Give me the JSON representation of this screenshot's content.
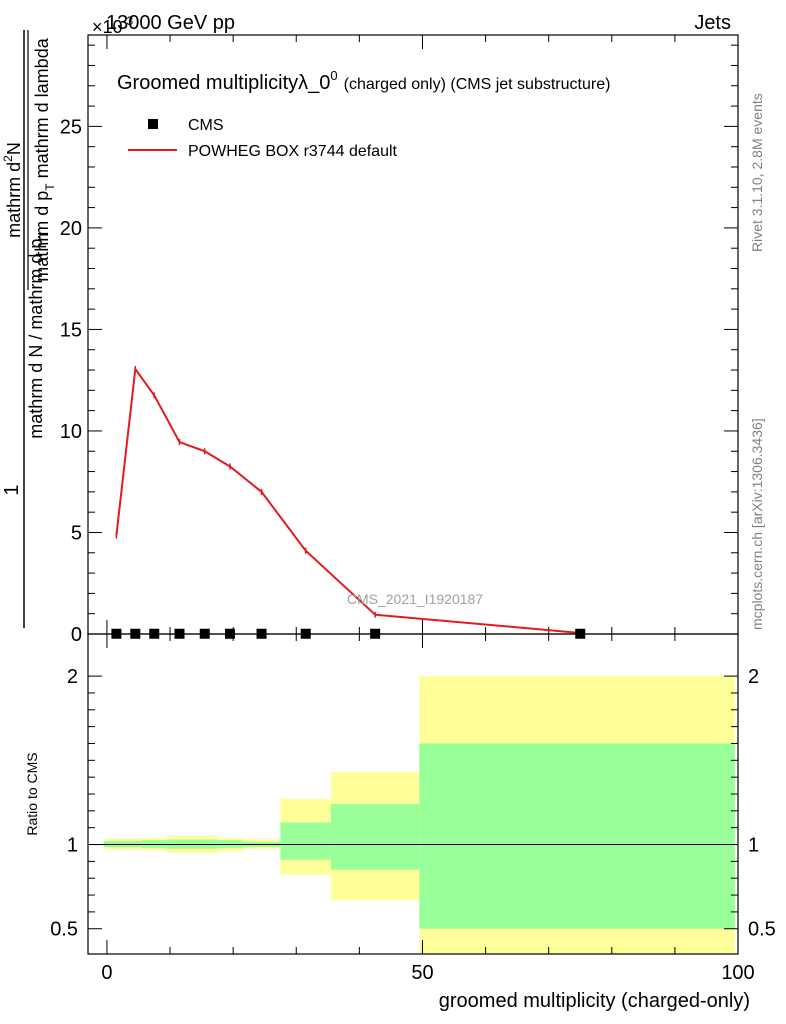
{
  "header": {
    "energy": "13000 GeV pp",
    "process": "Jets"
  },
  "side_labels": {
    "rivet": "Rivet 3.1.10,  2.8M events",
    "mcplots": "mcplots.cern.ch [arXiv:1306.3436]"
  },
  "watermark": "CMS_2021_I1920187",
  "colors": {
    "mc_line": "#e41a1c",
    "data_marker": "#000000",
    "band_inner": "#99ff99",
    "band_outer": "#ffff99"
  },
  "chart_data": [
    {
      "type": "line",
      "title": "Groomed multiplicityλ_0",
      "title_sup": "0",
      "title_suffix": "(charged only) (CMS jet substructure)",
      "multiplier": "×10",
      "multiplier_exp": "-3",
      "ylabel_num": "1",
      "ylabel_den": "mathrm d N / mathrm d p",
      "ylabel_den_sub": "T",
      "ylabel_top_num": "mathrm d",
      "ylabel_top_num_sup": "2",
      "ylabel_top_num_rest": "N",
      "ylabel_top_den": "mathrm d p",
      "ylabel_top_den_sub": "T",
      "ylabel_top_den_rest": " mathrm d lambda",
      "xlim": [
        -3,
        100
      ],
      "ylim": [
        0,
        29.5
      ],
      "yticks": [
        0,
        5,
        10,
        15,
        20,
        25
      ],
      "yticklabels": [
        "0",
        "5",
        "10",
        "15",
        "20",
        "25"
      ],
      "legend_position": "top-left",
      "series": [
        {
          "name": "CMS",
          "style": "marker",
          "x": [
            1.5,
            4.5,
            7.5,
            11.5,
            15.5,
            19.5,
            24.5,
            31.5,
            42.5,
            75
          ],
          "y": [
            0.012,
            0.012,
            0.012,
            0.012,
            0.012,
            0.012,
            0.012,
            0.012,
            0.012,
            0.012
          ]
        },
        {
          "name": "POWHEG BOX r3744 default",
          "style": "line",
          "x": [
            1.5,
            4.5,
            7.5,
            11.5,
            15.5,
            19.5,
            24.5,
            31.5,
            42.5,
            75
          ],
          "y": [
            4.85,
            13.05,
            11.75,
            9.45,
            9.0,
            8.25,
            7.0,
            4.1,
            0.95,
            0.05
          ]
        }
      ]
    },
    {
      "type": "area",
      "ylabel": "Ratio to CMS",
      "xlabel": "groomed multiplicity (charged-only)",
      "xlim": [
        -3,
        100
      ],
      "ylim": [
        0.35,
        2.25
      ],
      "xticks": [
        0,
        50,
        100
      ],
      "xticklabels": [
        "0",
        "50",
        "100"
      ],
      "yticks": [
        0.5,
        1,
        2
      ],
      "yticklabels": [
        "0.5",
        "1",
        "2"
      ],
      "reference_line": 1,
      "bins": [
        {
          "x0": -0.5,
          "x1": 3.5,
          "inner": [
            0.985,
            1.02
          ],
          "outer": [
            0.97,
            1.035
          ]
        },
        {
          "x0": 3.5,
          "x1": 5.5,
          "inner": [
            0.985,
            1.02
          ],
          "outer": [
            0.97,
            1.035
          ]
        },
        {
          "x0": 5.5,
          "x1": 9.5,
          "inner": [
            0.98,
            1.025
          ],
          "outer": [
            0.965,
            1.04
          ]
        },
        {
          "x0": 9.5,
          "x1": 17.5,
          "inner": [
            0.975,
            1.03
          ],
          "outer": [
            0.95,
            1.05
          ]
        },
        {
          "x0": 17.5,
          "x1": 21.5,
          "inner": [
            0.98,
            1.025
          ],
          "outer": [
            0.96,
            1.04
          ]
        },
        {
          "x0": 21.5,
          "x1": 27.5,
          "inner": [
            0.985,
            1.015
          ],
          "outer": [
            0.975,
            1.03
          ]
        },
        {
          "x0": 27.5,
          "x1": 35.5,
          "inner": [
            0.91,
            1.13
          ],
          "outer": [
            0.82,
            1.27
          ]
        },
        {
          "x0": 35.5,
          "x1": 49.5,
          "inner": [
            0.85,
            1.24
          ],
          "outer": [
            0.67,
            1.43
          ]
        },
        {
          "x0": 49.5,
          "x1": 99.5,
          "inner": [
            0.5,
            1.6
          ],
          "outer": [
            0.35,
            2.0
          ]
        }
      ]
    }
  ]
}
